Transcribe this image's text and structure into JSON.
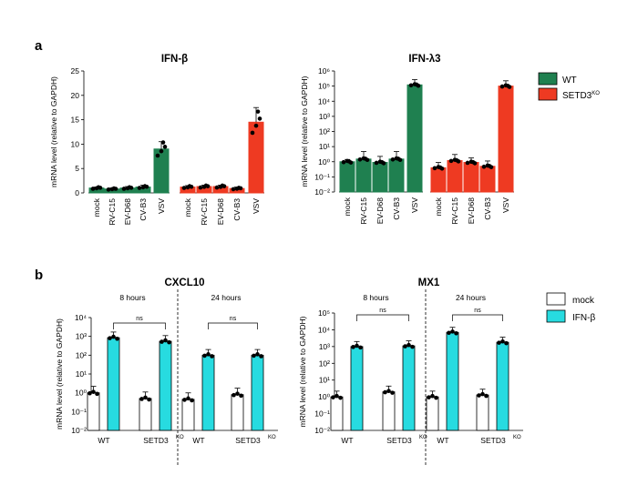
{
  "panel_labels": [
    "a",
    "b"
  ],
  "legend_a": [
    {
      "label": "WT",
      "color": "#1f8050"
    },
    {
      "label": "SETD3",
      "sup": "KO",
      "color": "#ee3a22"
    }
  ],
  "legend_b": [
    {
      "label": "mock",
      "color": "#ffffff"
    },
    {
      "label": "IFN-β",
      "color": "#27dbe0"
    }
  ],
  "chart_data": [
    {
      "id": "ifnb",
      "type": "bar",
      "title": "IFN-β",
      "ylabel": "mRNA level (relative to GAPDH)",
      "scale": "linear",
      "ylim": [
        0,
        25
      ],
      "yticks": [
        "0",
        "5",
        "10",
        "15",
        "20",
        "25"
      ],
      "categories": [
        "mock",
        "RV-C15",
        "EV-D68",
        "CV-B3",
        "VSV"
      ],
      "series": [
        {
          "name": "WT",
          "color": "#1f8050",
          "values": [
            1.0,
            0.8,
            1.0,
            1.2,
            9.0
          ],
          "err": [
            0.2,
            0.2,
            0.3,
            0.4,
            1.5
          ]
        },
        {
          "name": "SETD3KO",
          "color": "#ee3a22",
          "values": [
            1.2,
            1.3,
            1.3,
            0.9,
            14.5
          ],
          "err": [
            0.3,
            0.3,
            0.3,
            0.3,
            3.0
          ]
        }
      ]
    },
    {
      "id": "ifnl3",
      "type": "bar",
      "title": "IFN-λ3",
      "ylabel": "mRNA level (relative to GAPDH)",
      "scale": "log",
      "ylim": [
        0.01,
        1000000
      ],
      "yticks": [
        "10⁻²",
        "10⁻¹",
        "10⁰",
        "10¹",
        "10²",
        "10³",
        "10⁴",
        "10⁵",
        "10⁶"
      ],
      "categories": [
        "mock",
        "RV-C15",
        "EV-D68",
        "CV-B3",
        "VSV"
      ],
      "series": [
        {
          "name": "WT",
          "color": "#1f8050",
          "values": [
            1.0,
            1.5,
            0.9,
            1.5,
            120000
          ],
          "err": [
            0.15,
            0.5,
            0.4,
            0.5,
            0.35
          ]
        },
        {
          "name": "SETD3KO",
          "color": "#ee3a22",
          "values": [
            0.4,
            1.2,
            0.9,
            0.5,
            100000
          ],
          "err": [
            0.35,
            0.4,
            0.3,
            0.35,
            0.35
          ]
        }
      ]
    },
    {
      "id": "cxcl10",
      "type": "bar",
      "title": "CXCL10",
      "ylabel": "mRNA level (relative to GAPDH)",
      "scale": "log",
      "ylim": [
        0.01,
        10000
      ],
      "yticks": [
        "10⁻²",
        "10⁻¹",
        "10⁰",
        "10¹",
        "10²",
        "10³",
        "10⁴"
      ],
      "categories": [
        "WT",
        "SETD3KO"
      ],
      "groups": [
        {
          "label": "8 hours",
          "mock": [
            1.0,
            0.5
          ],
          "ifn": [
            850,
            550
          ],
          "ns": "ns"
        },
        {
          "label": "24 hours",
          "mock": [
            0.45,
            0.8
          ],
          "ifn": [
            100,
            100
          ],
          "ns": "ns"
        }
      ]
    },
    {
      "id": "mx1",
      "type": "bar",
      "title": "MX1",
      "ylabel": "mRNA level (relative to GAPDH)",
      "scale": "log",
      "ylim": [
        0.01,
        100000
      ],
      "yticks": [
        "10⁻²",
        "10⁻¹",
        "10⁰",
        "10¹",
        "10²",
        "10³",
        "10⁴",
        "10⁵"
      ],
      "categories": [
        "WT",
        "SETD3KO"
      ],
      "groups": [
        {
          "label": "8 hours",
          "mock": [
            1.0,
            2.0
          ],
          "ifn": [
            1000,
            1100
          ],
          "ns": "ns"
        },
        {
          "label": "24 hours",
          "mock": [
            1.0,
            1.3
          ],
          "ifn": [
            7000,
            1800
          ],
          "ns": "ns"
        }
      ]
    }
  ]
}
